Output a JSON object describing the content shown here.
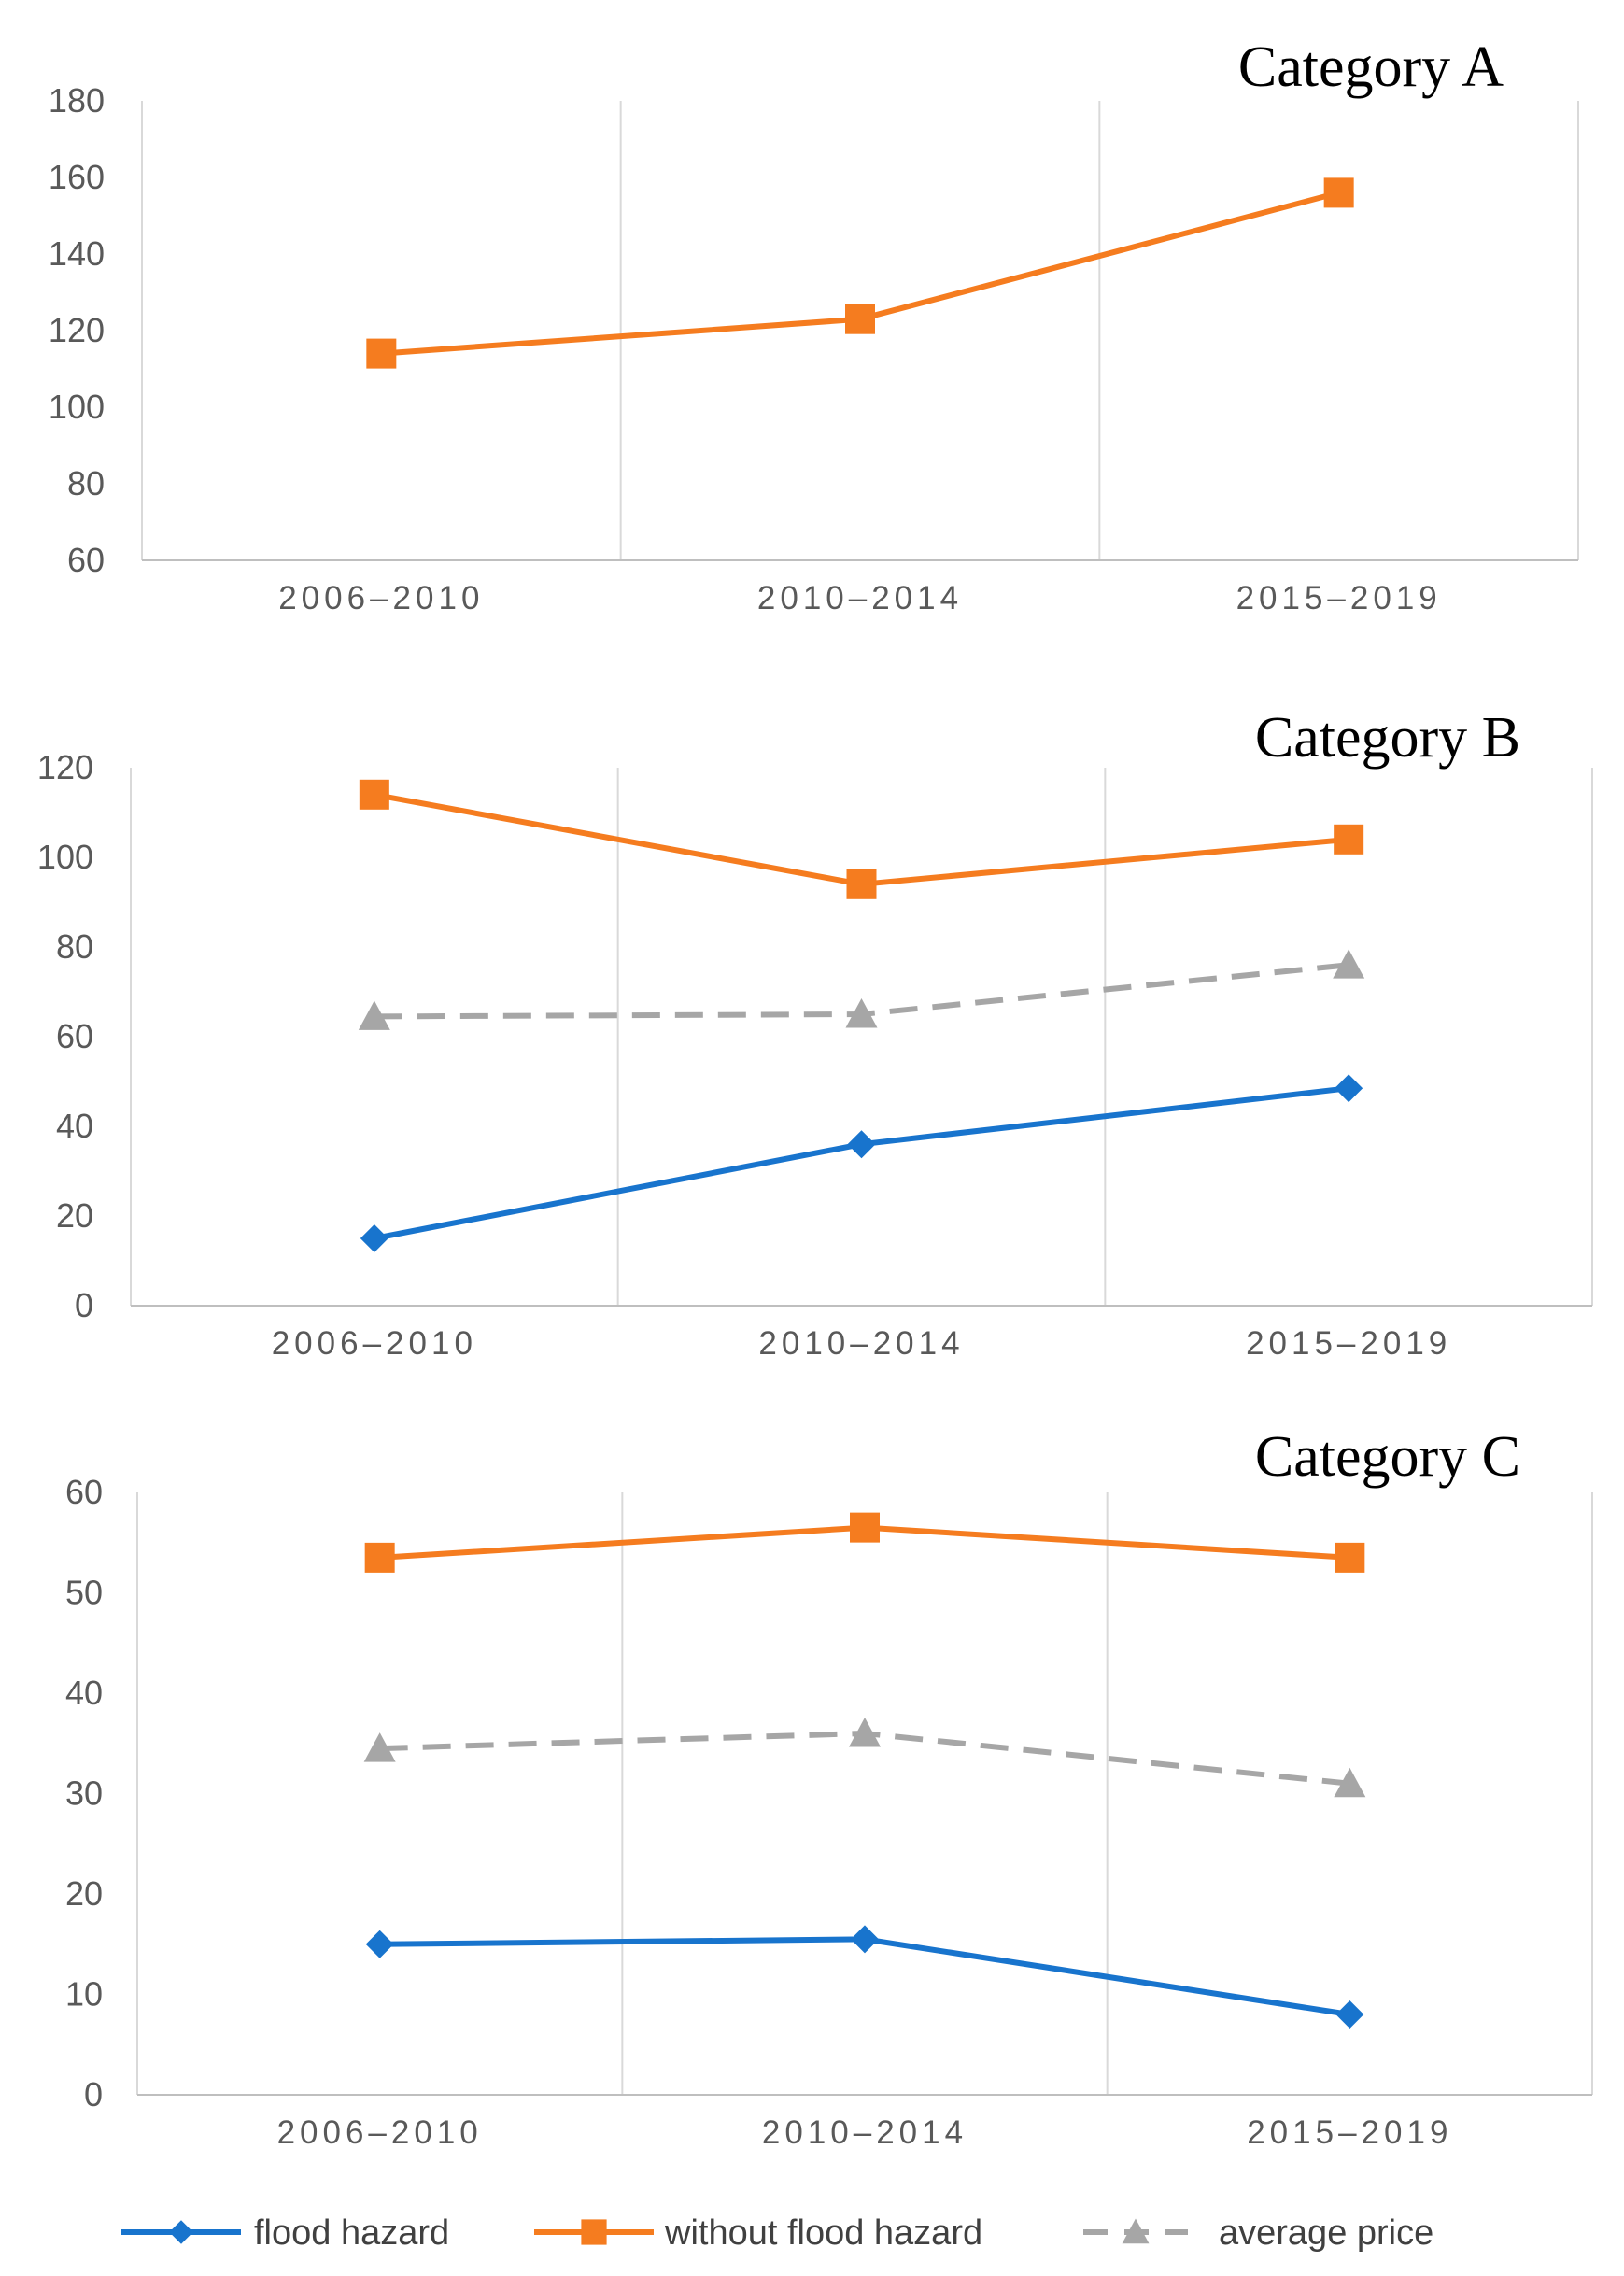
{
  "chart_data": [
    {
      "type": "line",
      "title": "Category A",
      "categories": [
        "2006–2010",
        "2010–2014",
        "2015–2019"
      ],
      "ylim": [
        60,
        180
      ],
      "yticks": [
        60,
        80,
        100,
        120,
        140,
        160,
        180
      ],
      "grid": "vertical",
      "series": [
        {
          "name": "without flood hazard",
          "values": [
            114,
            123,
            156
          ],
          "color": "#F57C1F",
          "marker": "square",
          "dash": false
        }
      ]
    },
    {
      "type": "line",
      "title": "Category B",
      "categories": [
        "2006–2010",
        "2010–2014",
        "2015–2019"
      ],
      "ylim": [
        0,
        120
      ],
      "yticks": [
        0,
        20,
        40,
        60,
        80,
        100,
        120
      ],
      "grid": "vertical",
      "series": [
        {
          "name": "without flood hazard",
          "values": [
            114,
            94,
            104
          ],
          "color": "#F57C1F",
          "marker": "square",
          "dash": false
        },
        {
          "name": "average price",
          "values": [
            64.5,
            65,
            76
          ],
          "color": "#A6A6A6",
          "marker": "triangle",
          "dash": true
        },
        {
          "name": "flood hazard",
          "values": [
            15,
            36,
            48.5
          ],
          "color": "#1874CD",
          "marker": "diamond",
          "dash": false
        }
      ]
    },
    {
      "type": "line",
      "title": "Category C",
      "categories": [
        "2006–2010",
        "2010–2014",
        "2015–2019"
      ],
      "ylim": [
        0,
        60
      ],
      "yticks": [
        0,
        10,
        20,
        30,
        40,
        50,
        60
      ],
      "grid": "vertical",
      "series": [
        {
          "name": "without flood hazard",
          "values": [
            53.5,
            56.5,
            53.5
          ],
          "color": "#F57C1F",
          "marker": "square",
          "dash": false
        },
        {
          "name": "average price",
          "values": [
            34.5,
            36,
            31
          ],
          "color": "#A6A6A6",
          "marker": "triangle",
          "dash": true
        },
        {
          "name": "flood hazard",
          "values": [
            15,
            15.5,
            8
          ],
          "color": "#1874CD",
          "marker": "diamond",
          "dash": false
        }
      ]
    }
  ],
  "legend": {
    "position": "bottom",
    "items": [
      {
        "label": "flood hazard",
        "color": "#1874CD",
        "marker": "diamond",
        "dash": false
      },
      {
        "label": "without flood hazard",
        "color": "#F57C1F",
        "marker": "square",
        "dash": false
      },
      {
        "label": "average price",
        "color": "#A6A6A6",
        "marker": "triangle",
        "dash": true
      }
    ]
  }
}
